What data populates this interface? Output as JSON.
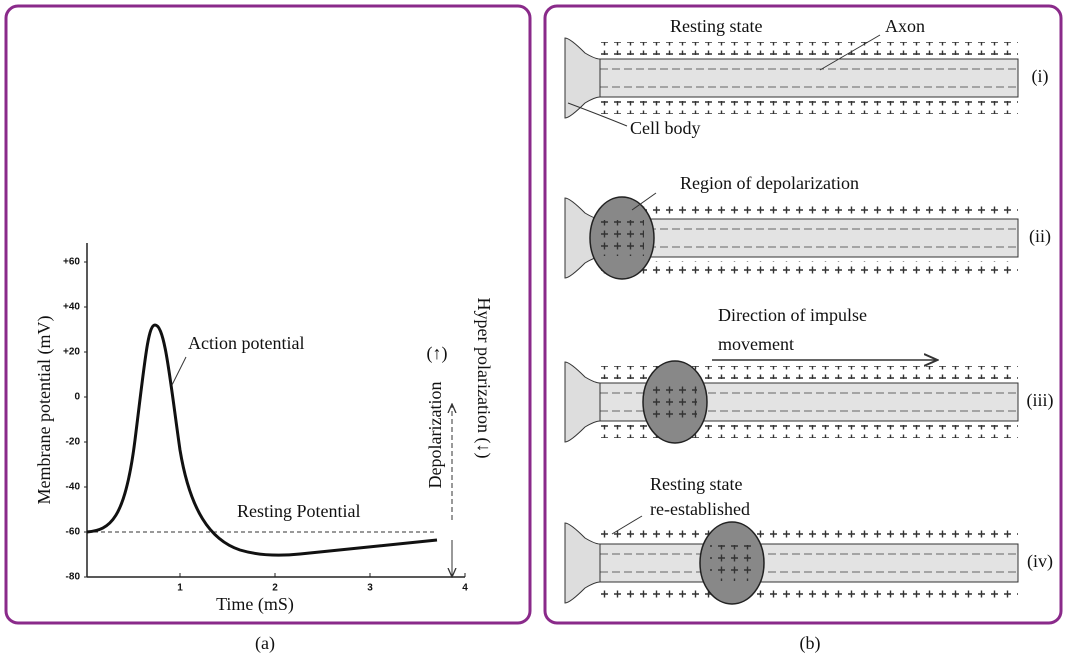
{
  "panel_a": {
    "caption": "(a)",
    "y_axis_label": "Membrane potential (mV)",
    "x_axis_label": "Time (mS)",
    "y_ticks": [
      "+60",
      "+40",
      "+20",
      "0",
      "-20",
      "-40",
      "-60",
      "-80"
    ],
    "x_ticks": [
      "1",
      "2",
      "3",
      "4"
    ],
    "action_potential_label": "Action potential",
    "resting_potential_label": "Resting Potential",
    "up_arrow_label": "(↑)",
    "depolarization_label": "Depolarization",
    "hyperpolarization_label": "Hyper polarization (↓)"
  },
  "panel_b": {
    "caption": "(b)",
    "rows": [
      {
        "label": "(i)",
        "annotations": [
          "Resting  state",
          "Axon",
          "Cell body"
        ]
      },
      {
        "label": "(ii)",
        "annotations": [
          "Region of depolarization"
        ]
      },
      {
        "label": "(iii)",
        "annotations": [
          "Direction of impulse",
          "movement"
        ]
      },
      {
        "label": "(iv)",
        "annotations": [
          "Resting state",
          "re-established"
        ]
      }
    ]
  }
}
